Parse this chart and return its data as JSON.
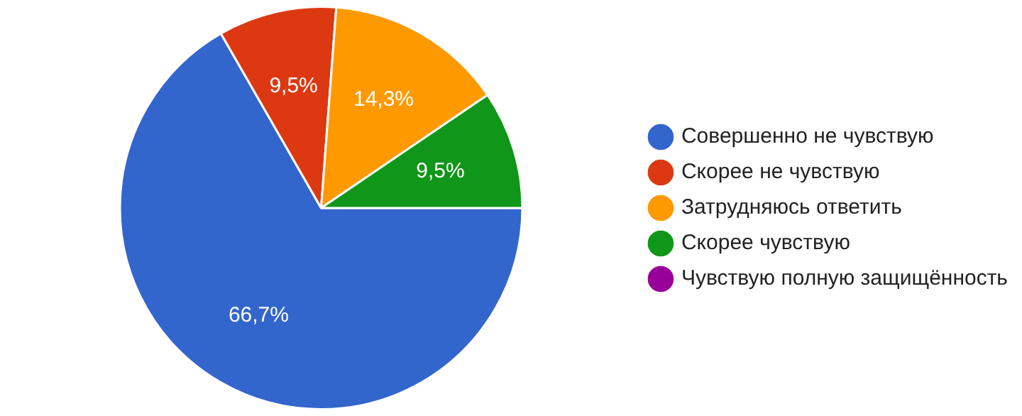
{
  "chart_data": {
    "type": "pie",
    "categories": [
      "Совершенно не чувствую",
      "Скорее не чувствую",
      "Затрудняюсь ответить",
      "Скорее чувствую",
      "Чувствую полную защищённость"
    ],
    "values": [
      66.7,
      9.5,
      14.3,
      9.5,
      0
    ],
    "colors": [
      "#3366cc",
      "#dc3912",
      "#ff9900",
      "#109618",
      "#990099"
    ],
    "value_labels": [
      "66,7%",
      "9,5%",
      "14,3%",
      "9,5%",
      null
    ],
    "legend": "right"
  }
}
